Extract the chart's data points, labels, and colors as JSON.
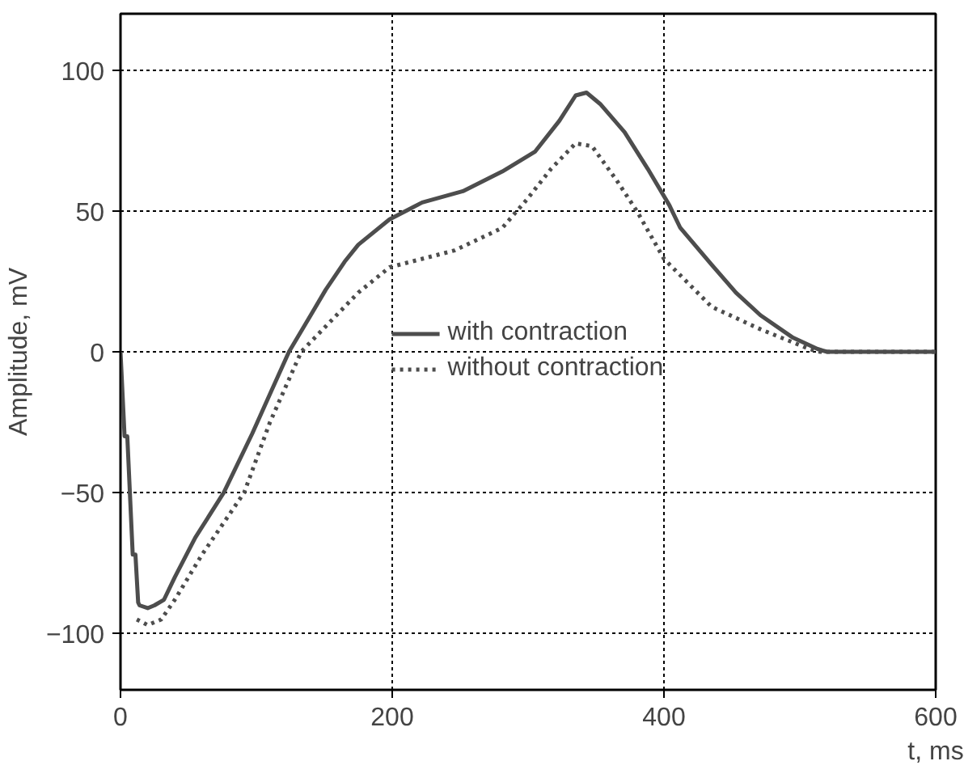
{
  "chart_data": {
    "type": "line",
    "xlabel": "t, ms",
    "ylabel": "Amplitude, mV",
    "xlim": [
      0,
      600
    ],
    "ylim": [
      -120,
      120
    ],
    "xticks": [
      0,
      200,
      400,
      600
    ],
    "yticks": [
      {
        "value": -100,
        "label": "−100"
      },
      {
        "value": -50,
        "label": "−50"
      },
      0,
      50,
      100
    ],
    "grid": true,
    "legend": "center",
    "marker": "none",
    "series": [
      {
        "name": "with contraction",
        "color": "#4d4d4d",
        "line_style": "solid",
        "x": [
          0,
          3,
          5,
          9,
          11,
          13,
          14,
          20,
          25,
          32,
          40,
          55,
          76,
          97,
          110,
          124,
          140,
          151,
          165,
          175,
          198,
          222,
          252,
          281,
          305,
          323,
          335,
          343,
          353,
          371,
          388,
          404,
          412,
          435,
          453,
          471,
          495,
          513,
          520,
          600
        ],
        "values": [
          0,
          -30,
          -30,
          -72,
          -72,
          -89,
          -90,
          -91,
          -90,
          -88,
          -80,
          -66,
          -50,
          -29,
          -15,
          0,
          13,
          22,
          32,
          38,
          47,
          53,
          57,
          64,
          71,
          82,
          91,
          92,
          88,
          78,
          65,
          52,
          44,
          31,
          21,
          13,
          5,
          1,
          0,
          0
        ]
      },
      {
        "name": "without contraction",
        "color": "#4d4d4d",
        "line_style": "dotted",
        "x": [
          12,
          20,
          30,
          40,
          60,
          91,
          110,
          133,
          151,
          175,
          198,
          246,
          281,
          299,
          317,
          335,
          347,
          365,
          380,
          400,
          435,
          471,
          507,
          515,
          600
        ],
        "values": [
          -95,
          -97,
          -95,
          -88,
          -72,
          -50,
          -25,
          0,
          9,
          21,
          30,
          36,
          44,
          54,
          65,
          74,
          73,
          61,
          50,
          33,
          16,
          8,
          1,
          0,
          0
        ]
      }
    ]
  }
}
